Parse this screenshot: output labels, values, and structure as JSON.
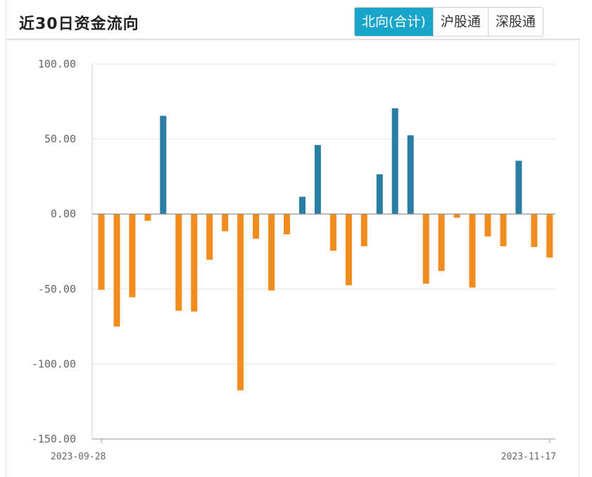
{
  "header": {
    "title": "近30日资金流向",
    "tabs": [
      {
        "label": "北向(合计)",
        "active": true
      },
      {
        "label": "沪股通",
        "active": false
      },
      {
        "label": "深股通",
        "active": false
      }
    ]
  },
  "colors": {
    "positive": "#2a7ea3",
    "negative": "#f28c1e",
    "tab_active": "#19a5c9"
  },
  "chart_data": {
    "type": "bar",
    "title": "",
    "xlabel": "",
    "ylabel": "",
    "ylim": [
      -150,
      100
    ],
    "yticks": [
      100,
      50,
      0,
      -50,
      -100,
      -150
    ],
    "ytick_labels": [
      "100.00",
      "50.00",
      "0.00",
      "-50.00",
      "-100.00",
      "-150.00"
    ],
    "x_start_label": "2023-09-28",
    "x_end_label": "2023-11-17",
    "grid": true,
    "values": [
      -50.5,
      -75.0,
      -55.5,
      -4.5,
      65.5,
      -64.5,
      -65.0,
      -30.5,
      -11.5,
      -117.5,
      -16.5,
      -51.0,
      -13.5,
      11.5,
      46.0,
      -24.5,
      -47.5,
      -21.5,
      26.5,
      70.5,
      52.5,
      -46.5,
      -38.0,
      -2.5,
      -49.0,
      -15.0,
      -21.5,
      35.5,
      -22.0,
      -29.0
    ]
  }
}
